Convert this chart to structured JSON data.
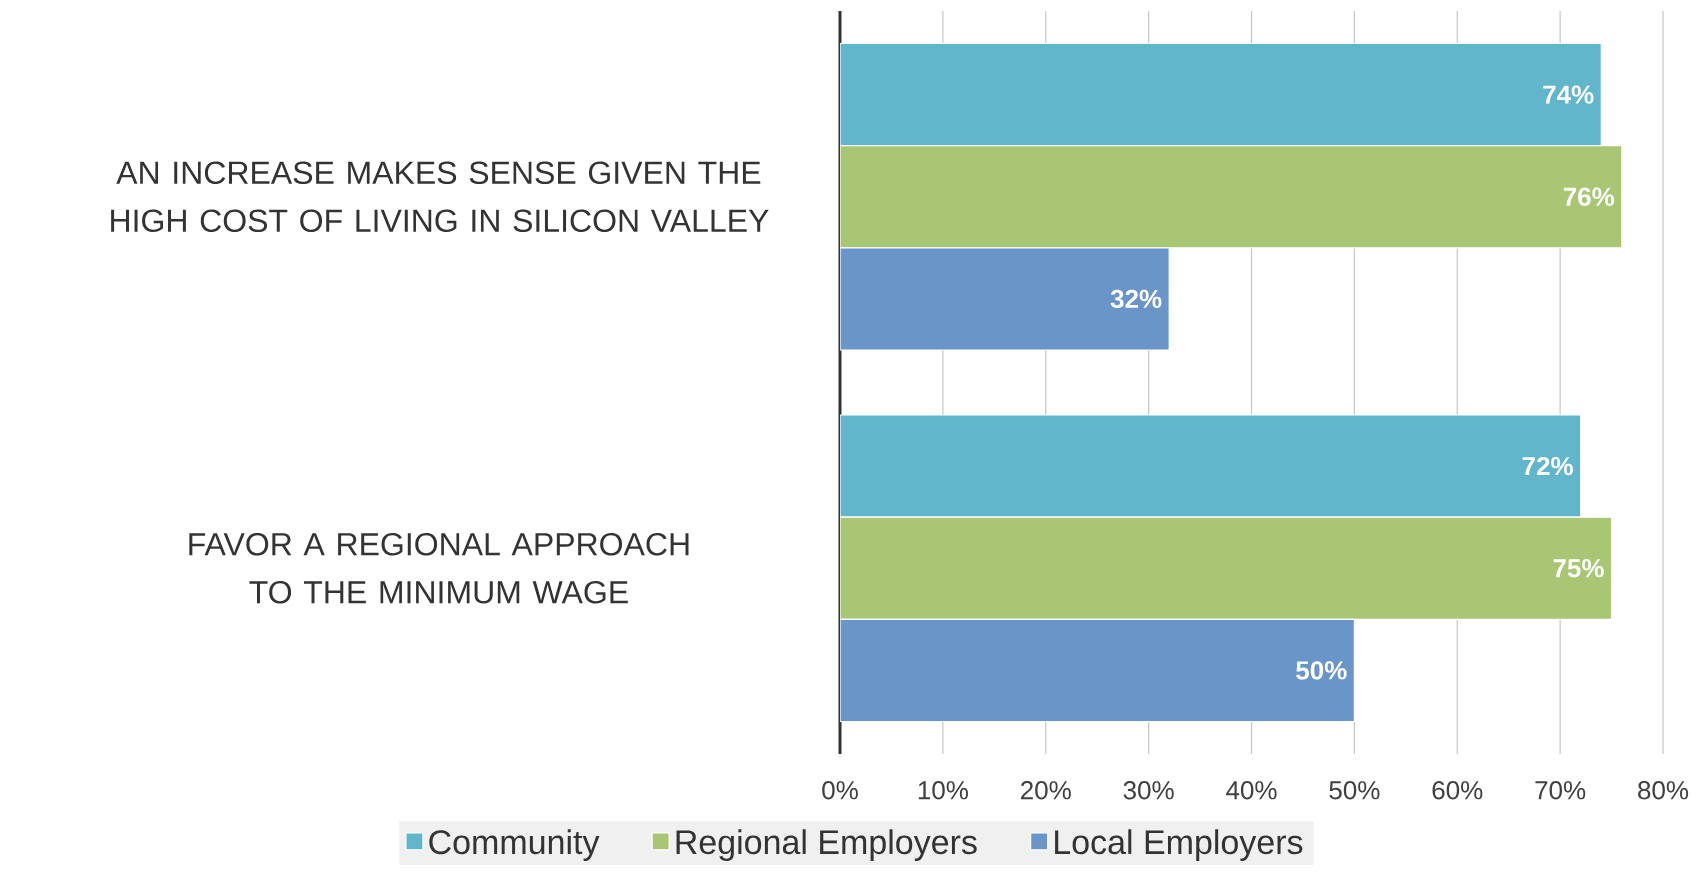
{
  "chart_data": {
    "type": "bar",
    "orientation": "horizontal",
    "categories": [
      "AN INCREASE MAKES SENSE GIVEN THE HIGH COST OF LIVING IN SILICON VALLEY",
      "FAVOR A REGIONAL APPROACH TO THE MINIMUM WAGE"
    ],
    "series": [
      {
        "name": "Community",
        "color": "#62b6cc",
        "values": [
          74,
          72
        ],
        "value_labels": [
          "74%",
          "72%"
        ]
      },
      {
        "name": "Regional Employers",
        "color": "#a9c674",
        "values": [
          76,
          75
        ],
        "value_labels": [
          "76%",
          "75%"
        ]
      },
      {
        "name": "Local Employers",
        "color": "#6a95c8",
        "values": [
          32,
          50
        ],
        "value_labels": [
          "32%",
          "50%"
        ]
      }
    ],
    "xlim": [
      0,
      80
    ],
    "xticks": [
      {
        "value": 0,
        "label": "0%"
      },
      {
        "value": 10,
        "label": "10%"
      },
      {
        "value": 20,
        "label": "20%"
      },
      {
        "value": 30,
        "label": "30%"
      },
      {
        "value": 40,
        "label": "40%"
      },
      {
        "value": 50,
        "label": "50%"
      },
      {
        "value": 60,
        "label": "60%"
      },
      {
        "value": 70,
        "label": "70%"
      },
      {
        "value": 80,
        "label": "80%"
      }
    ],
    "grid": "x",
    "legend": "bottom"
  }
}
